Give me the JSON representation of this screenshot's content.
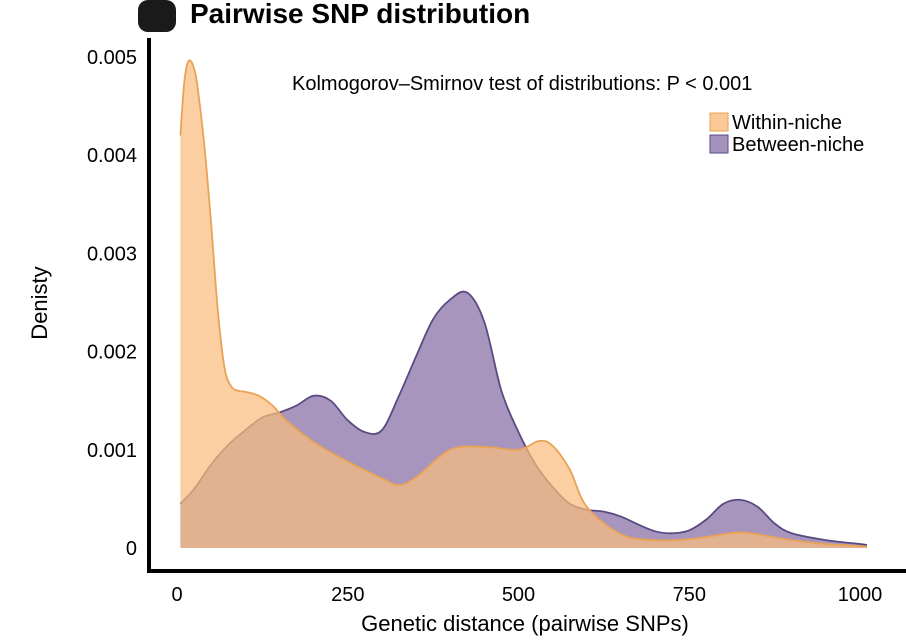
{
  "chart_data": {
    "type": "area",
    "title": "Pairwise SNP distribution",
    "xlabel": "Genetic distance (pairwise SNPs)",
    "ylabel": "Denisty",
    "xlim": [
      0,
      1010
    ],
    "ylim": [
      0,
      0.0052
    ],
    "x_ticks": [
      0,
      250,
      500,
      750,
      1000
    ],
    "y_ticks": [
      0,
      0.001,
      0.002,
      0.003,
      0.004,
      0.005
    ],
    "y_tick_labels": [
      "0",
      "0.001",
      "0.002",
      "0.003",
      "0.004",
      "0.005"
    ],
    "annotation": "Kolmogorov–Smirnov test of distributions: P < 0.001",
    "legend_position": "top-right",
    "grid": false,
    "series": [
      {
        "name": "Within-niche",
        "color": "#f9bc7d",
        "edge_color": "#e8a355",
        "x": [
          5,
          10,
          15,
          20,
          25,
          30,
          40,
          50,
          60,
          70,
          80,
          90,
          100,
          120,
          140,
          160,
          200,
          250,
          300,
          325,
          350,
          400,
          450,
          500,
          530,
          550,
          575,
          600,
          650,
          700,
          750,
          800,
          825,
          850,
          900,
          950,
          1000,
          1010
        ],
        "y": [
          0.0042,
          0.0047,
          0.00493,
          0.00496,
          0.00488,
          0.0047,
          0.0041,
          0.0033,
          0.0024,
          0.00182,
          0.00164,
          0.0016,
          0.00159,
          0.00155,
          0.00145,
          0.0013,
          0.00108,
          0.00088,
          0.00071,
          0.00064,
          0.00072,
          0.001,
          0.00103,
          0.001,
          0.00109,
          0.00104,
          0.0008,
          0.00042,
          0.00014,
          8e-05,
          9e-05,
          0.00014,
          0.00016,
          0.00014,
          8e-05,
          4e-05,
          2e-05,
          1e-05
        ]
      },
      {
        "name": "Between-niche",
        "color": "#8e77ab",
        "edge_color": "#5a4a82",
        "x": [
          5,
          25,
          50,
          75,
          100,
          125,
          150,
          175,
          200,
          225,
          250,
          275,
          300,
          325,
          350,
          375,
          400,
          425,
          450,
          475,
          500,
          525,
          550,
          575,
          600,
          625,
          650,
          675,
          700,
          725,
          750,
          775,
          800,
          825,
          850,
          875,
          900,
          950,
          1000,
          1010
        ],
        "y": [
          0.00045,
          0.0006,
          0.00085,
          0.00105,
          0.0012,
          0.00133,
          0.00138,
          0.00145,
          0.00155,
          0.0015,
          0.0013,
          0.00118,
          0.0012,
          0.00155,
          0.00195,
          0.00233,
          0.00253,
          0.0026,
          0.0023,
          0.0016,
          0.00118,
          0.00085,
          0.00062,
          0.00045,
          0.00039,
          0.00037,
          0.00032,
          0.00024,
          0.00017,
          0.00015,
          0.00018,
          0.00029,
          0.00045,
          0.00049,
          0.00042,
          0.00025,
          0.00015,
          8e-05,
          4e-05,
          3e-05
        ]
      }
    ]
  }
}
